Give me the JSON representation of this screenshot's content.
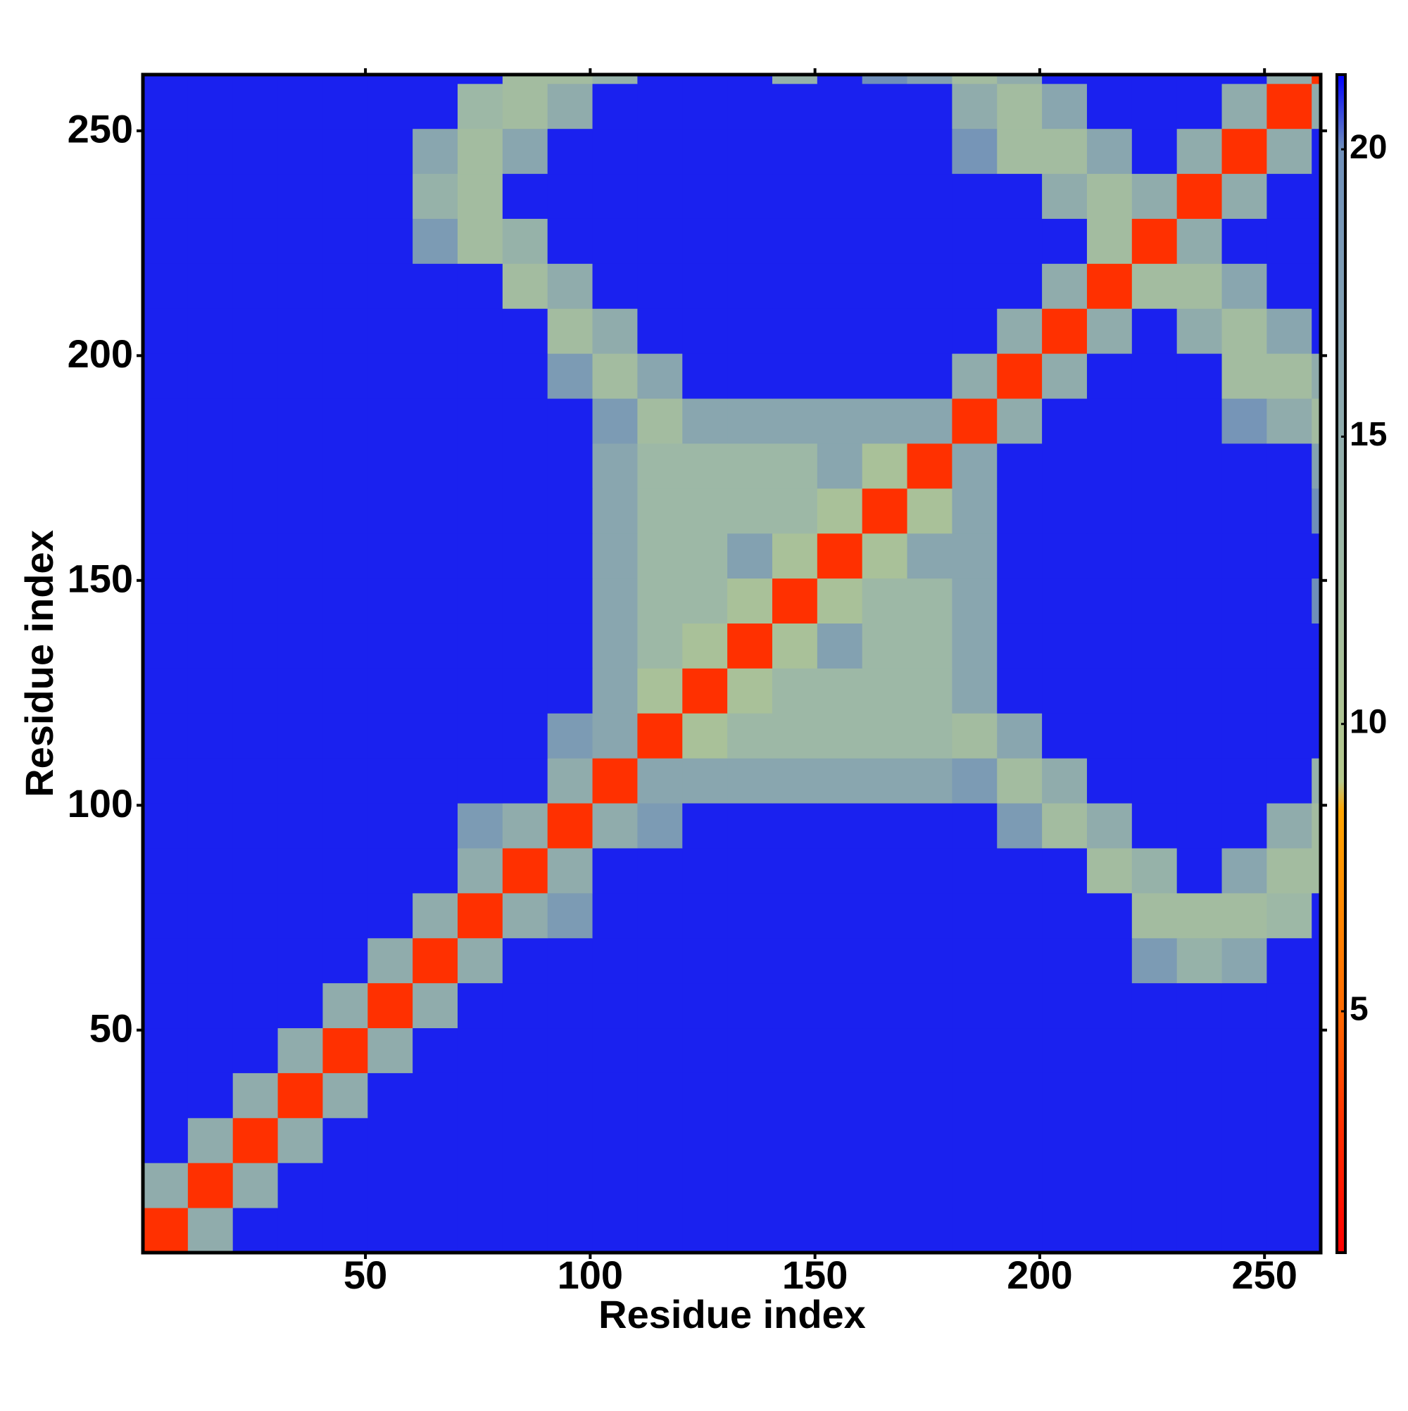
{
  "chart_data": {
    "type": "heatmap",
    "x_label": "Residue index",
    "y_label": "Residue index",
    "xlim": [
      0.5,
      262.5
    ],
    "ylim": [
      0.5,
      262.5
    ],
    "xticks": [
      50,
      100,
      150,
      200,
      250
    ],
    "yticks": [
      50,
      100,
      150,
      200,
      250
    ],
    "xbins": [
      0.5,
      10.5,
      20.5,
      30.5,
      40.5,
      50.5,
      60.5,
      70.5,
      80.5,
      90.5,
      100.5,
      110.5,
      120.5,
      130.5,
      140.5,
      150.5,
      160.5,
      170.5,
      180.5,
      190.5,
      200.5,
      210.5,
      220.5,
      230.5,
      240.5,
      250.5,
      260.5,
      262.5
    ],
    "ybins": [
      0.5,
      10.5,
      20.5,
      30.5,
      40.5,
      50.5,
      60.5,
      70.5,
      80.5,
      90.5,
      100.5,
      110.5,
      120.5,
      130.5,
      140.5,
      150.5,
      160.5,
      170.5,
      180.5,
      190.5,
      200.5,
      210.5,
      220.5,
      230.5,
      240.5,
      250.5,
      260.5,
      262.5
    ],
    "clim": [
      0.8,
      21.3
    ],
    "cticks": [
      5,
      10,
      15,
      20
    ],
    "colorscale": [
      [
        0.8,
        "#ff0000"
      ],
      [
        3,
        "#ff3000"
      ],
      [
        5,
        "#ff6a00"
      ],
      [
        8.5,
        "#ffa500"
      ],
      [
        9,
        "#b5c98c"
      ],
      [
        13,
        "#9db8a6"
      ],
      [
        20,
        "#6f8fba"
      ],
      [
        21.3,
        "#0000ff"
      ]
    ],
    "z": [
      [
        3,
        15,
        21,
        21,
        21,
        21,
        21,
        21,
        21,
        21,
        21,
        21,
        21,
        21,
        21,
        21,
        21,
        21,
        21,
        21,
        21,
        21,
        21,
        21,
        21,
        21,
        21
      ],
      [
        15,
        3,
        15,
        21,
        21,
        21,
        21,
        21,
        21,
        21,
        21,
        21,
        21,
        21,
        21,
        21,
        21,
        21,
        21,
        21,
        21,
        21,
        21,
        21,
        21,
        21,
        21
      ],
      [
        21,
        15,
        3,
        15,
        21,
        21,
        21,
        21,
        21,
        21,
        21,
        21,
        21,
        21,
        21,
        21,
        21,
        21,
        21,
        21,
        21,
        21,
        21,
        21,
        21,
        21,
        21
      ],
      [
        21,
        21,
        15,
        3,
        15,
        21,
        21,
        21,
        21,
        21,
        21,
        21,
        21,
        21,
        21,
        21,
        21,
        21,
        21,
        21,
        21,
        21,
        21,
        21,
        21,
        21,
        21
      ],
      [
        21,
        21,
        21,
        15,
        3,
        15,
        21,
        21,
        21,
        21,
        21,
        21,
        21,
        21,
        21,
        21,
        21,
        21,
        21,
        21,
        21,
        21,
        21,
        21,
        21,
        21,
        21
      ],
      [
        21,
        21,
        21,
        21,
        15,
        3,
        15,
        21,
        21,
        21,
        21,
        21,
        21,
        21,
        21,
        21,
        21,
        21,
        21,
        21,
        21,
        21,
        21,
        21,
        21,
        21,
        21
      ],
      [
        21,
        21,
        21,
        21,
        21,
        15,
        3,
        15,
        21,
        21,
        21,
        21,
        21,
        21,
        21,
        21,
        21,
        21,
        21,
        21,
        21,
        21,
        18,
        14,
        16,
        21,
        21
      ],
      [
        21,
        21,
        21,
        21,
        21,
        21,
        15,
        3,
        15,
        18,
        21,
        21,
        21,
        21,
        21,
        21,
        21,
        21,
        21,
        21,
        21,
        21,
        12,
        12,
        12,
        13,
        21
      ],
      [
        21,
        21,
        21,
        21,
        21,
        21,
        21,
        15,
        3,
        15,
        21,
        21,
        21,
        21,
        21,
        21,
        21,
        21,
        21,
        21,
        21,
        12,
        14,
        21,
        16,
        12,
        12
      ],
      [
        21,
        21,
        21,
        21,
        21,
        21,
        21,
        18,
        15,
        3,
        15,
        18,
        21,
        21,
        21,
        21,
        21,
        21,
        21,
        18,
        12,
        15,
        21,
        21,
        21,
        15,
        12
      ],
      [
        21,
        21,
        21,
        21,
        21,
        21,
        21,
        21,
        21,
        15,
        3,
        16,
        16,
        16,
        16,
        16,
        16,
        16,
        18,
        12,
        15,
        21,
        21,
        21,
        21,
        21,
        14
      ],
      [
        21,
        21,
        21,
        21,
        21,
        21,
        21,
        21,
        21,
        18,
        16,
        3,
        11,
        13,
        13,
        13,
        13,
        13,
        12,
        16,
        21,
        21,
        21,
        21,
        21,
        21,
        21
      ],
      [
        21,
        21,
        21,
        21,
        21,
        21,
        21,
        21,
        21,
        21,
        16,
        11,
        3,
        11,
        13,
        13,
        13,
        13,
        16,
        21,
        21,
        21,
        21,
        21,
        21,
        21,
        21
      ],
      [
        21,
        21,
        21,
        21,
        21,
        21,
        21,
        21,
        21,
        21,
        16,
        13,
        11,
        3,
        11,
        17,
        13,
        13,
        16,
        21,
        21,
        21,
        21,
        21,
        21,
        21,
        21
      ],
      [
        21,
        21,
        21,
        21,
        21,
        21,
        21,
        21,
        21,
        21,
        16,
        13,
        13,
        11,
        3,
        11,
        13,
        13,
        16,
        21,
        21,
        21,
        21,
        21,
        21,
        21,
        20
      ],
      [
        21,
        21,
        21,
        21,
        21,
        21,
        21,
        21,
        21,
        21,
        16,
        13,
        13,
        17,
        11,
        3,
        11,
        16,
        16,
        21,
        21,
        21,
        21,
        21,
        21,
        21,
        21
      ],
      [
        21,
        21,
        21,
        21,
        21,
        21,
        21,
        21,
        21,
        21,
        16,
        13,
        13,
        13,
        13,
        11,
        3,
        11,
        16,
        21,
        21,
        21,
        21,
        21,
        21,
        21,
        20
      ],
      [
        21,
        21,
        21,
        21,
        21,
        21,
        21,
        21,
        21,
        21,
        16,
        13,
        13,
        13,
        13,
        16,
        11,
        3,
        16,
        21,
        21,
        21,
        21,
        21,
        21,
        21,
        17
      ],
      [
        21,
        21,
        21,
        21,
        21,
        21,
        21,
        21,
        21,
        21,
        18,
        12,
        16,
        16,
        16,
        16,
        16,
        16,
        3,
        15,
        21,
        21,
        21,
        21,
        19,
        15,
        12
      ],
      [
        21,
        21,
        21,
        21,
        21,
        21,
        21,
        21,
        21,
        18,
        12,
        16,
        21,
        21,
        21,
        21,
        21,
        21,
        15,
        3,
        15,
        21,
        21,
        21,
        12,
        12,
        15
      ],
      [
        21,
        21,
        21,
        21,
        21,
        21,
        21,
        21,
        21,
        12,
        15,
        21,
        21,
        21,
        21,
        21,
        21,
        21,
        21,
        15,
        3,
        15,
        21,
        15,
        12,
        16,
        21
      ],
      [
        21,
        21,
        21,
        21,
        21,
        21,
        21,
        21,
        12,
        15,
        21,
        21,
        21,
        21,
        21,
        21,
        21,
        21,
        21,
        21,
        15,
        3,
        12,
        12,
        16,
        21,
        21
      ],
      [
        21,
        21,
        21,
        21,
        21,
        21,
        18,
        12,
        14,
        21,
        21,
        21,
        21,
        21,
        21,
        21,
        21,
        21,
        21,
        21,
        21,
        12,
        3,
        15,
        21,
        21,
        21
      ],
      [
        21,
        21,
        21,
        21,
        21,
        21,
        14,
        12,
        21,
        21,
        21,
        21,
        21,
        21,
        21,
        21,
        21,
        21,
        21,
        21,
        15,
        12,
        15,
        3,
        15,
        21,
        21
      ],
      [
        21,
        21,
        21,
        21,
        21,
        21,
        16,
        12,
        16,
        21,
        21,
        21,
        21,
        21,
        21,
        21,
        21,
        21,
        19,
        12,
        12,
        16,
        21,
        15,
        3,
        15,
        21
      ],
      [
        21,
        21,
        21,
        21,
        21,
        21,
        21,
        13,
        12,
        15,
        21,
        21,
        21,
        21,
        21,
        21,
        21,
        21,
        15,
        12,
        16,
        21,
        21,
        21,
        15,
        3,
        15
      ],
      [
        21,
        21,
        21,
        21,
        21,
        21,
        21,
        21,
        12,
        12,
        14,
        21,
        21,
        21,
        14,
        21,
        20,
        17,
        12,
        15,
        21,
        21,
        21,
        21,
        21,
        15,
        3
      ]
    ]
  }
}
